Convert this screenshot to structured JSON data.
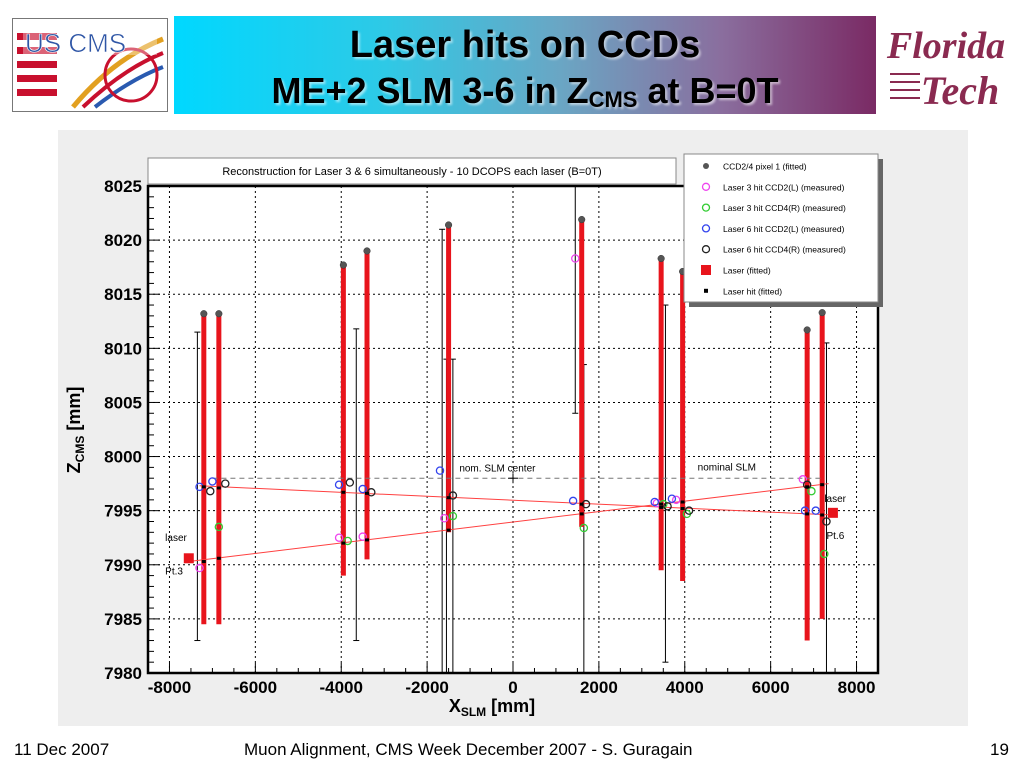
{
  "slide": {
    "title_line1": "Laser hits on CCDs",
    "title_line2_prefix": "ME+2 SLM 3-6 in Z",
    "title_line2_sub": "CMS",
    "title_line2_suffix": " at B=0T",
    "logo_left_text": "US CMS",
    "logo_right_line1": "Florida",
    "logo_right_line2": "Tech",
    "footer_date": "11 Dec 2007",
    "footer_center": "Muon Alignment, CMS Week December 2007  - S. Guragain",
    "page_number": "19"
  },
  "colors": {
    "laser_bar": "#e8141c",
    "laser_line": "#ff4040",
    "pixel_fitted": "#555555",
    "l3_ccd2": "#ee44ee",
    "l3_ccd4": "#33cc33",
    "l6_ccd2": "#3344ee",
    "l6_ccd4": "#222222"
  },
  "chart_data": {
    "type": "scatter",
    "title": "Reconstruction for Laser 3 & 6 simultaneously - 10 DCOPS each laser (B=0T)",
    "xlabel_main": "X",
    "xlabel_sub": "SLM",
    "xlabel_unit": " [mm]",
    "ylabel_main": "Z",
    "ylabel_sub": "CMS",
    "ylabel_unit": " [mm]",
    "xlim": [
      -8500,
      8500
    ],
    "ylim": [
      7980,
      8025
    ],
    "xticks": [
      -8000,
      -6000,
      -4000,
      -2000,
      0,
      2000,
      4000,
      6000,
      8000
    ],
    "yticks": [
      7980,
      7985,
      7990,
      7995,
      8000,
      8005,
      8010,
      8015,
      8020,
      8025
    ],
    "grid": true,
    "legend_position": "top-right",
    "legend": [
      {
        "label": "CCD2/4 pixel 1 (fitted)",
        "marker": "dot"
      },
      {
        "label": "Laser 3 hit CCD2(L) (measured)",
        "marker": "circle-magenta"
      },
      {
        "label": "Laser 3 hit CCD4(R) (measured)",
        "marker": "circle-green"
      },
      {
        "label": "Laser 6 hit CCD2(L) (measured)",
        "marker": "circle-blue"
      },
      {
        "label": "Laser 6 hit CCD4(R) (measured)",
        "marker": "circle-black"
      },
      {
        "label": "Laser (fitted)",
        "marker": "square-red"
      },
      {
        "label": "Laser hit (fitted)",
        "marker": "small-square-black"
      }
    ],
    "ccd_bars": [
      {
        "x": -7200,
        "ybot": 7984.5,
        "ytop": 8013.2
      },
      {
        "x": -6850,
        "ybot": 7984.5,
        "ytop": 8013.2
      },
      {
        "x": -3950,
        "ybot": 7989.0,
        "ytop": 8017.6
      },
      {
        "x": -3400,
        "ybot": 7990.5,
        "ytop": 8019.0
      },
      {
        "x": -1500,
        "ybot": 7993.0,
        "ytop": 8021.3
      },
      {
        "x": 1600,
        "ybot": 7993.5,
        "ytop": 8021.8
      },
      {
        "x": 3450,
        "ybot": 7989.5,
        "ytop": 8018.2
      },
      {
        "x": 3950,
        "ybot": 7988.5,
        "ytop": 8017.0
      },
      {
        "x": 6850,
        "ybot": 7983.0,
        "ytop": 8011.5
      },
      {
        "x": 7200,
        "ybot": 7985.0,
        "ytop": 8013.2
      }
    ],
    "error_bars": [
      {
        "x": -7350,
        "ybot": 7983.0,
        "ytop": 8011.5
      },
      {
        "x": -3650,
        "ybot": 7983.0,
        "ytop": 8011.8
      },
      {
        "x": -1650,
        "ybot": 7980.0,
        "ytop": 8021.0
      },
      {
        "x": -1550,
        "ybot": 7980.0,
        "ytop": 8009.0
      },
      {
        "x": -1400,
        "ybot": 7980.0,
        "ytop": 8009.0
      },
      {
        "x": 1450,
        "ybot": 8004.0,
        "ytop": 8025.0
      },
      {
        "x": 1650,
        "ybot": 7980.0,
        "ytop": 8008.5
      },
      {
        "x": 3550,
        "ybot": 7981.0,
        "ytop": 8014.0
      },
      {
        "x": 7300,
        "ybot": 7980.0,
        "ytop": 8010.5
      }
    ],
    "laser_lines": [
      {
        "name": "Laser 3",
        "x": [
          -7550,
          7350
        ],
        "y": [
          7990.3,
          7997.5
        ]
      },
      {
        "name": "Laser 6",
        "x": [
          -7300,
          7450
        ],
        "y": [
          7997.3,
          7994.6
        ]
      }
    ],
    "lasers_fitted": [
      {
        "x": -7550,
        "y": 7990.6
      },
      {
        "x": 7450,
        "y": 7994.8
      }
    ],
    "pixel_fitted": [
      {
        "x": -7200,
        "y": 8013.2
      },
      {
        "x": -6850,
        "y": 8013.2
      },
      {
        "x": -3950,
        "y": 8017.7
      },
      {
        "x": -3400,
        "y": 8019.0
      },
      {
        "x": -1500,
        "y": 8021.4
      },
      {
        "x": 1600,
        "y": 8021.9
      },
      {
        "x": 3450,
        "y": 8018.3
      },
      {
        "x": 3950,
        "y": 8017.1
      },
      {
        "x": 6850,
        "y": 8011.7
      },
      {
        "x": 7200,
        "y": 8013.3
      }
    ],
    "laser3_ccd2": [
      {
        "x": -7300,
        "y": 7989.7
      },
      {
        "x": -4050,
        "y": 7992.5
      },
      {
        "x": -3500,
        "y": 7992.6
      },
      {
        "x": -1600,
        "y": 7994.3
      },
      {
        "x": 1450,
        "y": 8018.3
      },
      {
        "x": 3350,
        "y": 7995.7
      },
      {
        "x": 3800,
        "y": 7996.0
      },
      {
        "x": 6750,
        "y": 7997.9
      }
    ],
    "laser3_ccd4": [
      {
        "x": -6850,
        "y": 7993.5
      },
      {
        "x": -3850,
        "y": 7992.2
      },
      {
        "x": -1400,
        "y": 7994.5
      },
      {
        "x": 1650,
        "y": 7993.4
      },
      {
        "x": 3500,
        "y": 7995.6
      },
      {
        "x": 4050,
        "y": 7994.7
      },
      {
        "x": 6950,
        "y": 7996.8
      },
      {
        "x": 7250,
        "y": 7991.0
      }
    ],
    "laser6_ccd2": [
      {
        "x": -7300,
        "y": 7997.2
      },
      {
        "x": -7000,
        "y": 7997.7
      },
      {
        "x": -4050,
        "y": 7997.4
      },
      {
        "x": -3500,
        "y": 7997.0
      },
      {
        "x": -1700,
        "y": 7998.7
      },
      {
        "x": 1400,
        "y": 7995.9
      },
      {
        "x": 3300,
        "y": 7995.8
      },
      {
        "x": 3700,
        "y": 7996.1
      },
      {
        "x": 6800,
        "y": 7995.0
      },
      {
        "x": 7050,
        "y": 7995.0
      }
    ],
    "laser6_ccd4": [
      {
        "x": -7050,
        "y": 7996.8
      },
      {
        "x": -6700,
        "y": 7997.5
      },
      {
        "x": -3800,
        "y": 7997.6
      },
      {
        "x": -3300,
        "y": 7996.7
      },
      {
        "x": -1400,
        "y": 7996.4
      },
      {
        "x": 1700,
        "y": 7995.6
      },
      {
        "x": 3600,
        "y": 7995.4
      },
      {
        "x": 4100,
        "y": 7995.0
      },
      {
        "x": 6850,
        "y": 7997.4
      },
      {
        "x": 7300,
        "y": 7994.0
      }
    ],
    "laser_hits_fitted": [
      {
        "x": -7200,
        "y": 7990.3
      },
      {
        "x": -6850,
        "y": 7990.6
      },
      {
        "x": -3950,
        "y": 7992.0
      },
      {
        "x": -3400,
        "y": 7992.3
      },
      {
        "x": -1500,
        "y": 7993.2
      },
      {
        "x": 1600,
        "y": 7994.7
      },
      {
        "x": 3450,
        "y": 7995.6
      },
      {
        "x": 3950,
        "y": 7995.8
      },
      {
        "x": 6850,
        "y": 7997.2
      },
      {
        "x": 7200,
        "y": 7997.4
      },
      {
        "x": -7200,
        "y": 7997.2
      },
      {
        "x": -6850,
        "y": 7997.1
      },
      {
        "x": -3950,
        "y": 7996.7
      },
      {
        "x": -3400,
        "y": 7996.6
      },
      {
        "x": -1500,
        "y": 7996.2
      },
      {
        "x": 1600,
        "y": 7995.6
      },
      {
        "x": 3450,
        "y": 7995.3
      },
      {
        "x": 3950,
        "y": 7995.2
      },
      {
        "x": 6850,
        "y": 7994.7
      },
      {
        "x": 7200,
        "y": 7994.6
      }
    ],
    "nominal_line": {
      "x": [
        -7000,
        7200
      ],
      "y": 7998.0
    },
    "nominal_marker": {
      "x": 0,
      "y": 7998.0
    },
    "annotations": [
      {
        "text": "nom. SLM center",
        "x": -1250,
        "y": 7998.6
      },
      {
        "text": "nominal SLM",
        "x": 4300,
        "y": 7998.7
      },
      {
        "text": "laser",
        "x": -8100,
        "y": 7992.2
      },
      {
        "text": "Pt.3",
        "x": -8100,
        "y": 7989.1
      },
      {
        "text": "laser",
        "x": 7250,
        "y": 7995.8
      },
      {
        "text": "Pt.6",
        "x": 7300,
        "y": 7992.4
      }
    ]
  }
}
